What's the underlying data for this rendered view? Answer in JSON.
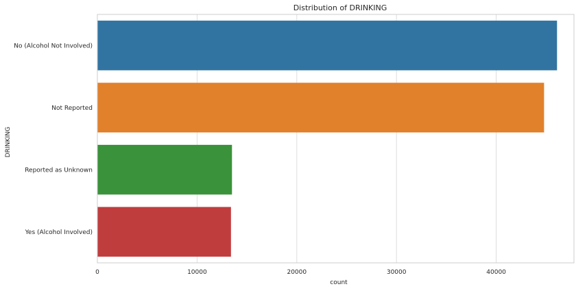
{
  "chart_data": {
    "type": "bar",
    "orientation": "horizontal",
    "title": "Distribution of DRINKING",
    "xlabel": "count",
    "ylabel": "DRINKING",
    "categories": [
      "No (Alcohol Not Involved)",
      "Not Reported",
      "Reported as Unknown",
      "Yes (Alcohol Involved)"
    ],
    "values": [
      46100,
      44800,
      13500,
      13400
    ],
    "xlim": [
      0,
      47800
    ],
    "xticks": [
      0,
      10000,
      20000,
      30000,
      40000
    ],
    "xtick_labels": [
      "0",
      "10000",
      "20000",
      "30000",
      "40000"
    ],
    "grid": true,
    "colors": [
      "#3274a1",
      "#e1812c",
      "#3a923a",
      "#c03d3e"
    ],
    "gridline_color": "#dddddd",
    "frame_color": "#cccccc"
  }
}
